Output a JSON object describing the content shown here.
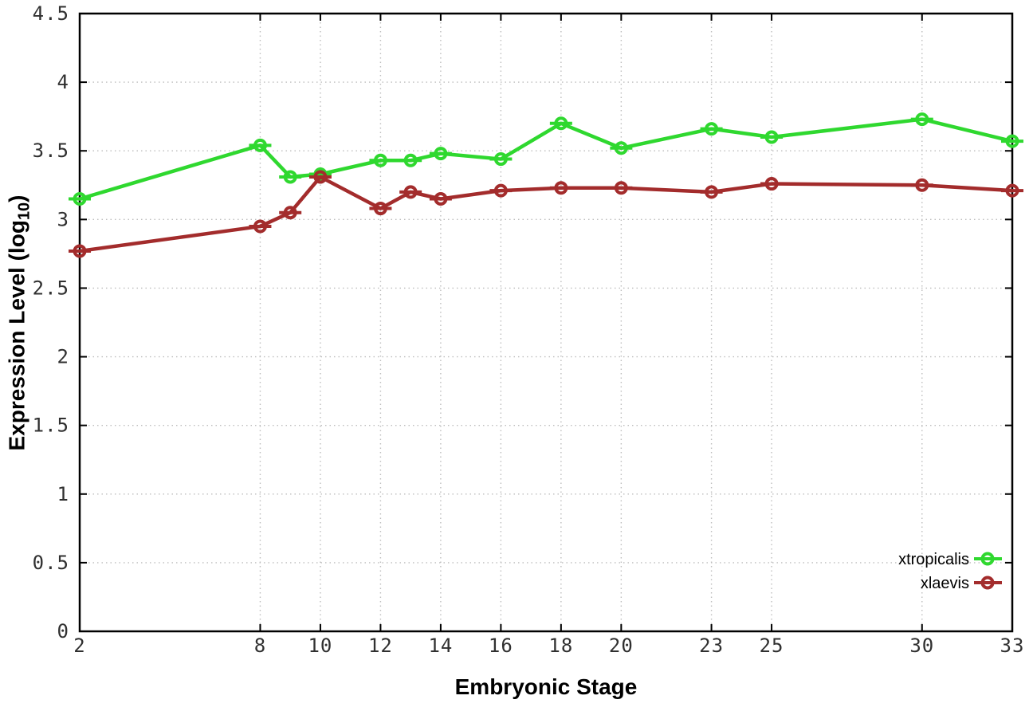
{
  "chart_data": {
    "type": "line",
    "title": "",
    "xlabel": "Embryonic Stage",
    "ylabel": "Expression Level (log10)",
    "ylabel_parts": {
      "prefix": "Expression Level (log",
      "sub": "10",
      "suffix": ")"
    },
    "x": [
      2,
      8,
      9,
      10,
      12,
      13,
      14,
      16,
      18,
      20,
      23,
      25,
      30,
      33
    ],
    "series": [
      {
        "name": "xtropicalis",
        "color": "#2fd82f",
        "values": [
          3.15,
          3.54,
          3.31,
          3.33,
          3.43,
          3.43,
          3.48,
          3.44,
          3.7,
          3.52,
          3.66,
          3.6,
          3.73,
          3.57
        ]
      },
      {
        "name": "xlaevis",
        "color": "#a32c2c",
        "values": [
          2.77,
          2.95,
          3.05,
          3.31,
          3.08,
          3.2,
          3.15,
          3.21,
          3.23,
          3.23,
          3.2,
          3.26,
          3.25,
          3.21
        ]
      }
    ],
    "xlim": [
      2,
      33
    ],
    "ylim": [
      0,
      4.5
    ],
    "x_ticks": [
      {
        "value": 2,
        "label": "2"
      },
      {
        "value": 8,
        "label": "8"
      },
      {
        "value": 10,
        "label": "10"
      },
      {
        "value": 12,
        "label": "12"
      },
      {
        "value": 14,
        "label": "14"
      },
      {
        "value": 16,
        "label": "16"
      },
      {
        "value": 18,
        "label": "18"
      },
      {
        "value": 20,
        "label": "20"
      },
      {
        "value": 23,
        "label": "23"
      },
      {
        "value": 25,
        "label": "25"
      },
      {
        "value": 30,
        "label": "30"
      },
      {
        "value": 33,
        "label": "33"
      }
    ],
    "y_ticks": [
      {
        "value": 0,
        "label": "0"
      },
      {
        "value": 0.5,
        "label": "0.5"
      },
      {
        "value": 1,
        "label": "1"
      },
      {
        "value": 1.5,
        "label": "1.5"
      },
      {
        "value": 2,
        "label": "2"
      },
      {
        "value": 2.5,
        "label": "2.5"
      },
      {
        "value": 3,
        "label": "3"
      },
      {
        "value": 3.5,
        "label": "3.5"
      },
      {
        "value": 4,
        "label": "4"
      },
      {
        "value": 4.5,
        "label": "4.5"
      }
    ],
    "grid": true,
    "grid_style": "dotted",
    "legend_position": "bottom-right",
    "marker": "open-circle-with-yerror-whisker",
    "background_color": "#ffffff",
    "border_color": "#000000",
    "grid_color": "#bdbdbd",
    "tick_label_color": "#303030"
  }
}
